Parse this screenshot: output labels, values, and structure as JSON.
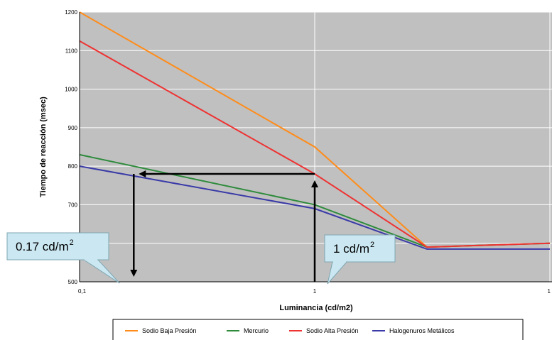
{
  "chart_data": {
    "type": "line",
    "xscale": "log",
    "xlim": [
      0.1,
      10
    ],
    "ylim": [
      500,
      1200
    ],
    "xlabel": "Luminancia (cd/m2)",
    "ylabel": "Tiempo de reacción (msec)",
    "x_ticks": [
      "0,1",
      "1",
      "1"
    ],
    "y_ticks": [
      "500",
      "600",
      "700",
      "800",
      "900",
      "1000",
      "1100",
      "1200"
    ],
    "grid": true,
    "legend_position": "bottom",
    "x": [
      0.1,
      1,
      3,
      10
    ],
    "series": [
      {
        "name": "Sodio Baja Presión",
        "color": "#FF8C1A",
        "values": [
          1200,
          850,
          590,
          600
        ]
      },
      {
        "name": "Mercurio",
        "color": "#2E8B3C",
        "values": [
          830,
          700,
          590,
          600
        ]
      },
      {
        "name": "Sodio Alta Presión",
        "color": "#EE3333",
        "values": [
          1125,
          780,
          590,
          600
        ]
      },
      {
        "name": "Halogenuros Metálicos",
        "color": "#3A3AA8",
        "values": [
          800,
          690,
          585,
          585
        ]
      }
    ],
    "annotations": [
      {
        "text": "0.17 cd/m",
        "sup": "2",
        "x": 0.17,
        "y": 500
      },
      {
        "text": "1 cd/m",
        "sup": "2",
        "x": 1,
        "y": 500
      }
    ],
    "reference_lines": {
      "horizontal_y": 780,
      "from_x": 0.17,
      "to_x": 1
    }
  }
}
